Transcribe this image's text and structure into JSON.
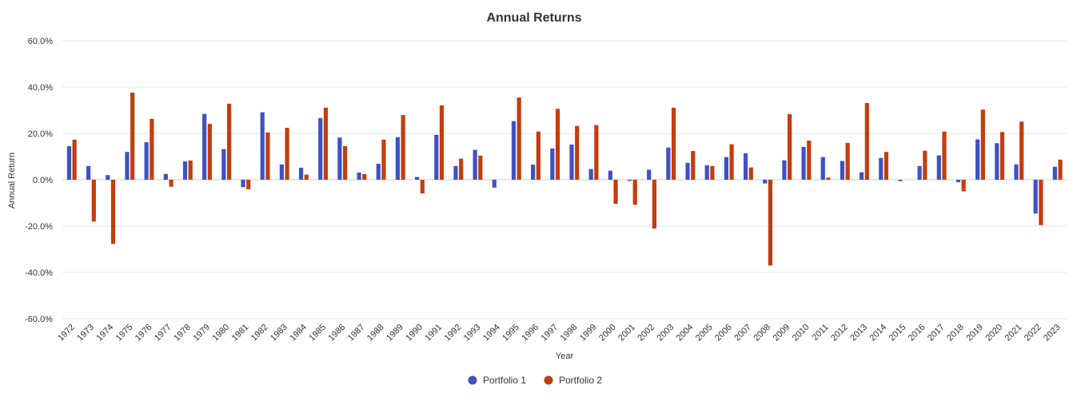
{
  "chart_data": {
    "type": "bar",
    "title": "Annual Returns",
    "xlabel": "Year",
    "ylabel": "Annual Return",
    "ylim": [
      -60,
      60
    ],
    "yticks": [
      60,
      40,
      20,
      0,
      -20,
      -40,
      -60
    ],
    "ytick_labels": [
      "60.0%",
      "40.0%",
      "20.0%",
      "0.0%",
      "-20.0%",
      "-40.0%",
      "-60.0%"
    ],
    "grid": true,
    "legend_position": "bottom-center",
    "categories": [
      "1972",
      "1973",
      "1974",
      "1975",
      "1976",
      "1977",
      "1978",
      "1979",
      "1980",
      "1981",
      "1982",
      "1983",
      "1984",
      "1985",
      "1986",
      "1987",
      "1988",
      "1989",
      "1990",
      "1991",
      "1992",
      "1993",
      "1994",
      "1995",
      "1996",
      "1997",
      "1998",
      "1999",
      "2000",
      "2001",
      "2002",
      "2003",
      "2004",
      "2005",
      "2006",
      "2007",
      "2008",
      "2009",
      "2010",
      "2011",
      "2012",
      "2013",
      "2014",
      "2015",
      "2016",
      "2017",
      "2018",
      "2019",
      "2020",
      "2021",
      "2022",
      "2023"
    ],
    "series": [
      {
        "name": "Portfolio 1",
        "color": "#3d52c4",
        "values": [
          14.5,
          5.9,
          2.0,
          12.0,
          16.2,
          2.5,
          7.9,
          28.4,
          13.2,
          -3.2,
          29.1,
          6.6,
          5.2,
          26.6,
          18.2,
          3.1,
          6.9,
          18.4,
          1.2,
          19.4,
          5.9,
          12.9,
          -3.4,
          25.3,
          6.5,
          13.5,
          15.2,
          4.6,
          3.9,
          -0.5,
          4.3,
          13.9,
          7.3,
          6.2,
          9.8,
          11.4,
          -1.6,
          8.4,
          14.2,
          9.8,
          8.1,
          3.2,
          9.4,
          -0.6,
          5.9,
          10.5,
          -1.1,
          17.4,
          15.8,
          6.6,
          -14.6,
          5.6
        ]
      },
      {
        "name": "Portfolio 2",
        "color": "#c43d0e",
        "values": [
          17.3,
          -18.0,
          -27.7,
          37.6,
          26.3,
          -3.0,
          8.3,
          24.1,
          32.8,
          -4.1,
          20.4,
          22.4,
          2.2,
          31.1,
          14.5,
          2.4,
          17.3,
          27.9,
          -5.9,
          32.1,
          9.1,
          10.4,
          0.0,
          35.5,
          20.8,
          30.6,
          23.2,
          23.6,
          -10.4,
          -10.8,
          -21.1,
          31.1,
          12.4,
          5.9,
          15.3,
          5.3,
          -37.0,
          28.3,
          16.9,
          0.9,
          15.9,
          33.1,
          12.0,
          0.0,
          12.5,
          20.8,
          -5.0,
          30.3,
          20.6,
          25.1,
          -19.6,
          8.7
        ]
      }
    ]
  }
}
